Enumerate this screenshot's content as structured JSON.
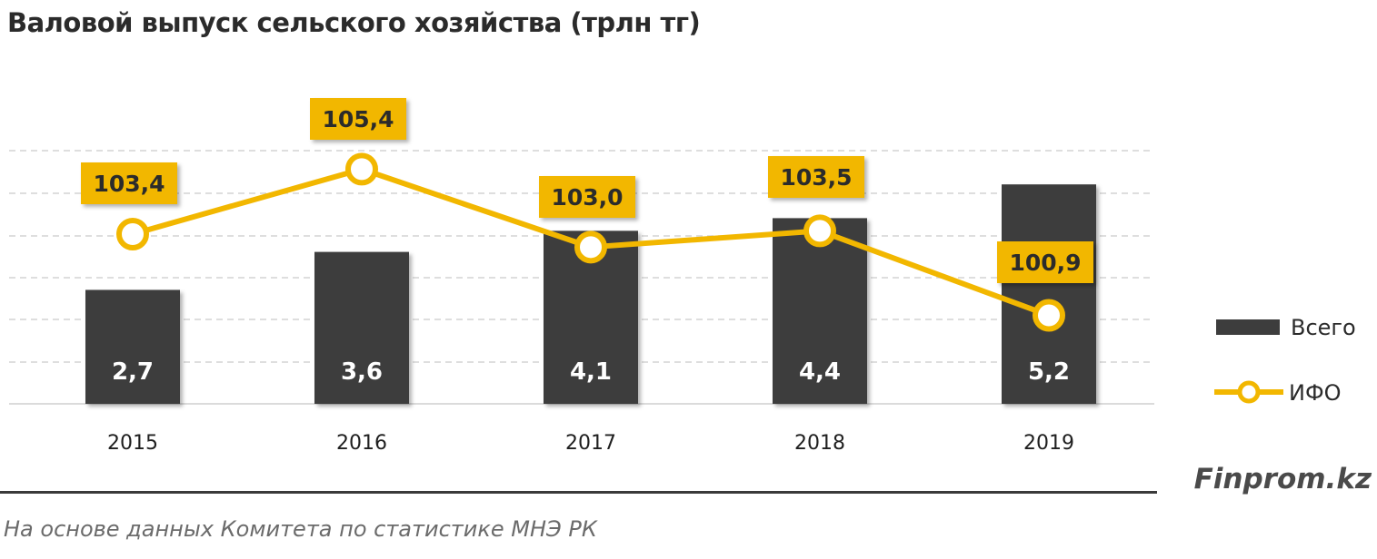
{
  "title": "Валовой выпуск сельского хозяйства (трлн тг)",
  "brand": "Finprom.kz",
  "source": "На основе данных  Комитета по статистике МНЭ РК",
  "colors": {
    "bar": "#3d3d3d",
    "line": "#f2b700",
    "grid": "#d4d4d4",
    "text": "#2b2b2b"
  },
  "chart_data": {
    "type": "bar",
    "categories": [
      "2015",
      "2016",
      "2017",
      "2018",
      "2019"
    ],
    "series": [
      {
        "name": "Всего",
        "type": "bar",
        "values": [
          2.7,
          3.6,
          4.1,
          4.4,
          5.2
        ],
        "labels": [
          "2,7",
          "3,6",
          "4,1",
          "4,4",
          "5,2"
        ]
      },
      {
        "name": "ИФО",
        "type": "line",
        "values": [
          103.4,
          105.4,
          103.0,
          103.5,
          100.9
        ],
        "labels": [
          "103,4",
          "105,4",
          "103,0",
          "103,5",
          "100,9"
        ]
      }
    ],
    "title": "Валовой выпуск сельского хозяйства (трлн тг)",
    "xlabel": "",
    "ylabel": "",
    "ylim_bars": [
      0,
      6
    ],
    "ylim_line": [
      98,
      107
    ],
    "grid": true,
    "legend_position": "right"
  }
}
